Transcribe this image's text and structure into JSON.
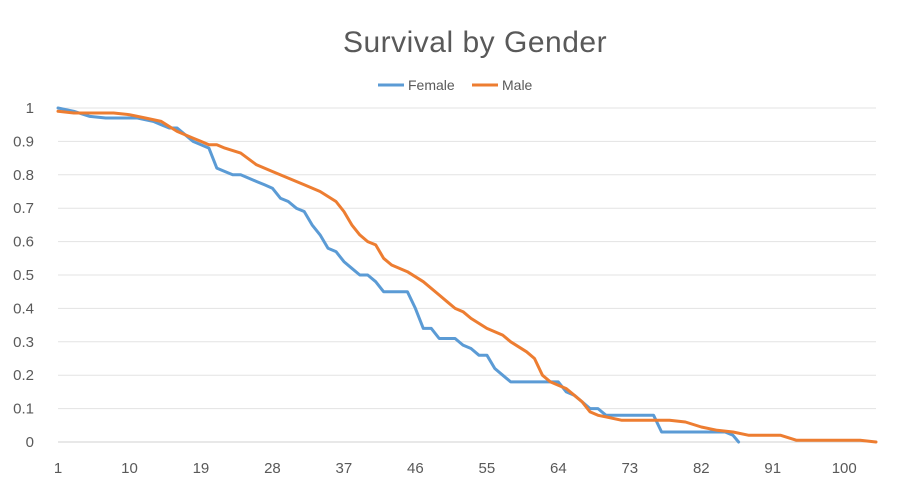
{
  "chart_data": {
    "type": "line",
    "title": "Survival by Gender",
    "xlabel": "",
    "ylabel": "",
    "x_ticks": [
      "1",
      "10",
      "19",
      "28",
      "37",
      "46",
      "55",
      "64",
      "73",
      "82",
      "91",
      "100"
    ],
    "y_ticks": [
      "0",
      "0.1",
      "0.2",
      "0.3",
      "0.4",
      "0.5",
      "0.6",
      "0.7",
      "0.8",
      "0.9",
      "1"
    ],
    "xlim": [
      1,
      104
    ],
    "ylim": [
      0,
      1
    ],
    "grid": "horizontal",
    "legend": "top",
    "series": [
      {
        "name": "Female",
        "color": "#5B9BD5",
        "points": [
          [
            1,
            1.0
          ],
          [
            3,
            0.99
          ],
          [
            5,
            0.975
          ],
          [
            7,
            0.97
          ],
          [
            9,
            0.97
          ],
          [
            11,
            0.97
          ],
          [
            13,
            0.96
          ],
          [
            14,
            0.95
          ],
          [
            15,
            0.94
          ],
          [
            16,
            0.94
          ],
          [
            17,
            0.92
          ],
          [
            18,
            0.9
          ],
          [
            19,
            0.89
          ],
          [
            20,
            0.88
          ],
          [
            21,
            0.82
          ],
          [
            22,
            0.81
          ],
          [
            23,
            0.8
          ],
          [
            24,
            0.8
          ],
          [
            25,
            0.79
          ],
          [
            26,
            0.78
          ],
          [
            27,
            0.77
          ],
          [
            28,
            0.76
          ],
          [
            29,
            0.73
          ],
          [
            30,
            0.72
          ],
          [
            31,
            0.7
          ],
          [
            32,
            0.69
          ],
          [
            33,
            0.65
          ],
          [
            34,
            0.62
          ],
          [
            35,
            0.58
          ],
          [
            36,
            0.57
          ],
          [
            37,
            0.54
          ],
          [
            38,
            0.52
          ],
          [
            39,
            0.5
          ],
          [
            40,
            0.5
          ],
          [
            41,
            0.48
          ],
          [
            42,
            0.45
          ],
          [
            43,
            0.45
          ],
          [
            44,
            0.45
          ],
          [
            45,
            0.45
          ],
          [
            46,
            0.4
          ],
          [
            47,
            0.34
          ],
          [
            48,
            0.34
          ],
          [
            49,
            0.31
          ],
          [
            50,
            0.31
          ],
          [
            51,
            0.31
          ],
          [
            52,
            0.29
          ],
          [
            53,
            0.28
          ],
          [
            54,
            0.26
          ],
          [
            55,
            0.26
          ],
          [
            56,
            0.22
          ],
          [
            57,
            0.2
          ],
          [
            58,
            0.18
          ],
          [
            60,
            0.18
          ],
          [
            62,
            0.18
          ],
          [
            64,
            0.18
          ],
          [
            65,
            0.15
          ],
          [
            66,
            0.14
          ],
          [
            67,
            0.12
          ],
          [
            68,
            0.1
          ],
          [
            69,
            0.1
          ],
          [
            70,
            0.08
          ],
          [
            72,
            0.08
          ],
          [
            74,
            0.08
          ],
          [
            76,
            0.08
          ],
          [
            77,
            0.03
          ],
          [
            80,
            0.03
          ],
          [
            83,
            0.03
          ],
          [
            85,
            0.03
          ],
          [
            86,
            0.02
          ],
          [
            86.7,
            0.0
          ]
        ]
      },
      {
        "name": "Male",
        "color": "#ED7D31",
        "points": [
          [
            1,
            0.99
          ],
          [
            3,
            0.985
          ],
          [
            5,
            0.985
          ],
          [
            8,
            0.985
          ],
          [
            10,
            0.98
          ],
          [
            12,
            0.97
          ],
          [
            14,
            0.96
          ],
          [
            16,
            0.93
          ],
          [
            18,
            0.91
          ],
          [
            19,
            0.9
          ],
          [
            20,
            0.89
          ],
          [
            21,
            0.89
          ],
          [
            22,
            0.88
          ],
          [
            24,
            0.865
          ],
          [
            26,
            0.83
          ],
          [
            28,
            0.81
          ],
          [
            30,
            0.79
          ],
          [
            32,
            0.77
          ],
          [
            34,
            0.75
          ],
          [
            36,
            0.72
          ],
          [
            37,
            0.69
          ],
          [
            38,
            0.65
          ],
          [
            39,
            0.62
          ],
          [
            40,
            0.6
          ],
          [
            41,
            0.59
          ],
          [
            42,
            0.55
          ],
          [
            43,
            0.53
          ],
          [
            45,
            0.51
          ],
          [
            47,
            0.48
          ],
          [
            49,
            0.44
          ],
          [
            50,
            0.42
          ],
          [
            51,
            0.4
          ],
          [
            52,
            0.39
          ],
          [
            53,
            0.37
          ],
          [
            55,
            0.34
          ],
          [
            57,
            0.32
          ],
          [
            58,
            0.3
          ],
          [
            60,
            0.27
          ],
          [
            61,
            0.25
          ],
          [
            62,
            0.2
          ],
          [
            63,
            0.18
          ],
          [
            64,
            0.17
          ],
          [
            65,
            0.16
          ],
          [
            66,
            0.14
          ],
          [
            67,
            0.12
          ],
          [
            68,
            0.09
          ],
          [
            69,
            0.08
          ],
          [
            70,
            0.075
          ],
          [
            72,
            0.065
          ],
          [
            75,
            0.065
          ],
          [
            78,
            0.065
          ],
          [
            80,
            0.06
          ],
          [
            82,
            0.045
          ],
          [
            84,
            0.035
          ],
          [
            86,
            0.03
          ],
          [
            88,
            0.02
          ],
          [
            90,
            0.02
          ],
          [
            92,
            0.02
          ],
          [
            94,
            0.005
          ],
          [
            98,
            0.005
          ],
          [
            102,
            0.005
          ],
          [
            104,
            0.0
          ]
        ]
      }
    ]
  }
}
